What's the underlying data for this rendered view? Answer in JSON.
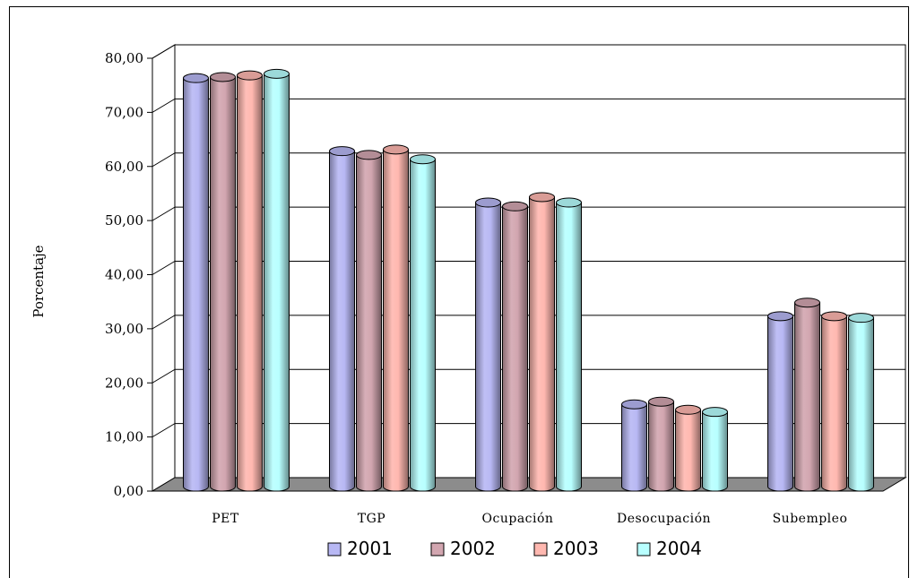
{
  "chart_data": {
    "type": "bar",
    "title": "",
    "xlabel": "",
    "ylabel": "Porcentaje",
    "ylim": [
      0,
      80
    ],
    "yticks": [
      "0,00",
      "10,00",
      "20,00",
      "30,00",
      "40,00",
      "50,00",
      "60,00",
      "70,00",
      "80,00"
    ],
    "categories": [
      "PET",
      "TGP",
      "Ocupación",
      "Desocupación",
      "Subempleo"
    ],
    "series": [
      {
        "name": "2001",
        "values": [
          75.5,
          62.0,
          52.5,
          15.2,
          31.5
        ]
      },
      {
        "name": "2002",
        "values": [
          75.7,
          61.3,
          51.8,
          15.7,
          34.0
        ]
      },
      {
        "name": "2003",
        "values": [
          76.0,
          62.3,
          53.5,
          14.2,
          31.5
        ]
      },
      {
        "name": "2004",
        "values": [
          76.3,
          60.5,
          52.5,
          13.8,
          31.2
        ]
      }
    ],
    "grid": true,
    "legend_position": "bottom"
  },
  "colors": {
    "2001": "#b8b8f4",
    "2002": "#d2a6b0",
    "2003": "#ffb8b0",
    "2004": "#b8ffff",
    "floor": "#8c8c8c",
    "wall": "#ffffff"
  }
}
